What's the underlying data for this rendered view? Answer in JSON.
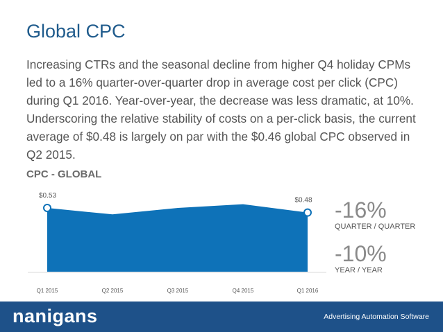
{
  "slide": {
    "title": "Global CPC",
    "body": "Increasing CTRs and the seasonal decline from higher Q4 holiday CPMs led to a 16% quarter-over-quarter drop in average cost per click (CPC) during Q1 2016. Year-over-year, the decrease was less dramatic, at 10%. Underscoring the relative stability of costs on a per-click basis, the current average of $0.48 is largely on par with the $0.46 global CPC observed in Q2 2015."
  },
  "chart_data": {
    "type": "area",
    "title": "CPC - GLOBAL",
    "categories": [
      "Q1 2015",
      "Q2 2015",
      "Q3 2015",
      "Q4 2015",
      "Q1 2016"
    ],
    "values": [
      0.53,
      0.46,
      0.53,
      0.57,
      0.48
    ],
    "data_labels": [
      {
        "index": 0,
        "text": "$0.53"
      },
      {
        "index": 4,
        "text": "$0.48"
      }
    ],
    "highlight_points": [
      0,
      4
    ],
    "grid": false,
    "fill_color": "#0e72b8",
    "ylim": [
      0,
      0.65
    ]
  },
  "stats": {
    "qoq_value": "-16%",
    "qoq_label": "QUARTER / QUARTER",
    "yoy_value": "-10%",
    "yoy_label": "YEAR / YEAR"
  },
  "footer": {
    "logo": "nanigans",
    "tagline": "Advertising Automation Software",
    "background": "#1e5189"
  }
}
